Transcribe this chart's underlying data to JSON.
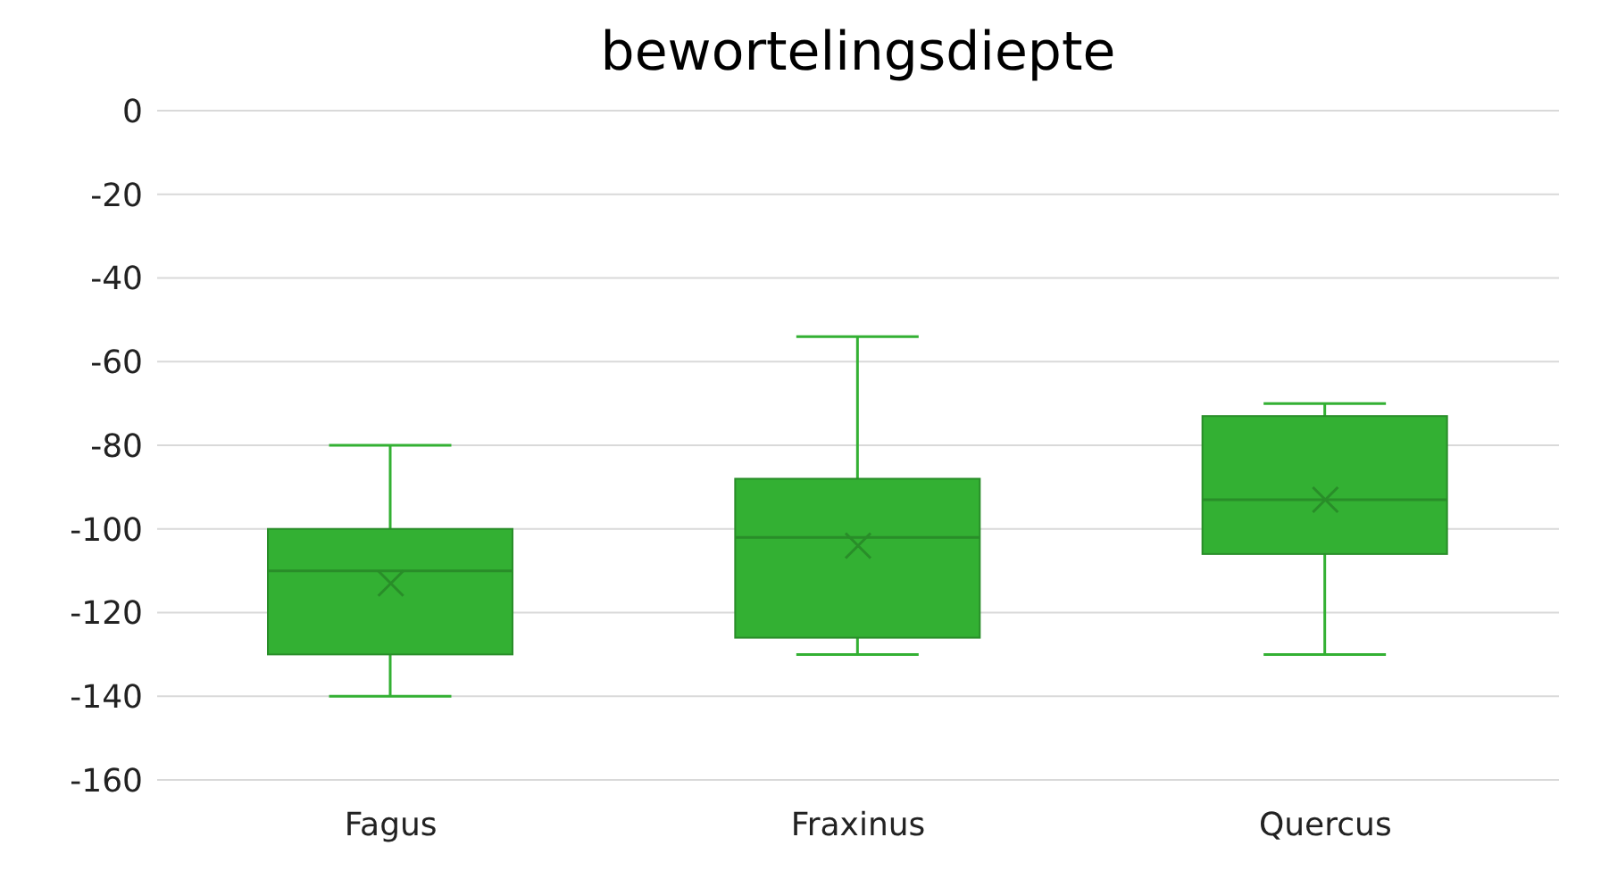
{
  "chart_data": {
    "type": "box",
    "title": "bewortelingsdiepte",
    "categories": [
      "Fagus",
      "Fraxinus",
      "Quercus"
    ],
    "series": [
      {
        "color": "#33b033",
        "boxes": [
          {
            "low": -140,
            "q1": -130,
            "median": -110,
            "q3": -100,
            "high": -80,
            "mean": -113
          },
          {
            "low": -130,
            "q1": -126,
            "median": -102,
            "q3": -88,
            "high": -54,
            "mean": -104
          },
          {
            "low": -130,
            "q1": -106,
            "median": -93,
            "q3": -73,
            "high": -70,
            "mean": -93
          }
        ]
      }
    ],
    "ylim": [
      -160,
      0
    ],
    "yticks": [
      -160,
      -140,
      -120,
      -100,
      -80,
      -60,
      -40,
      -20,
      0
    ],
    "grid": "y",
    "marker": "cross"
  }
}
